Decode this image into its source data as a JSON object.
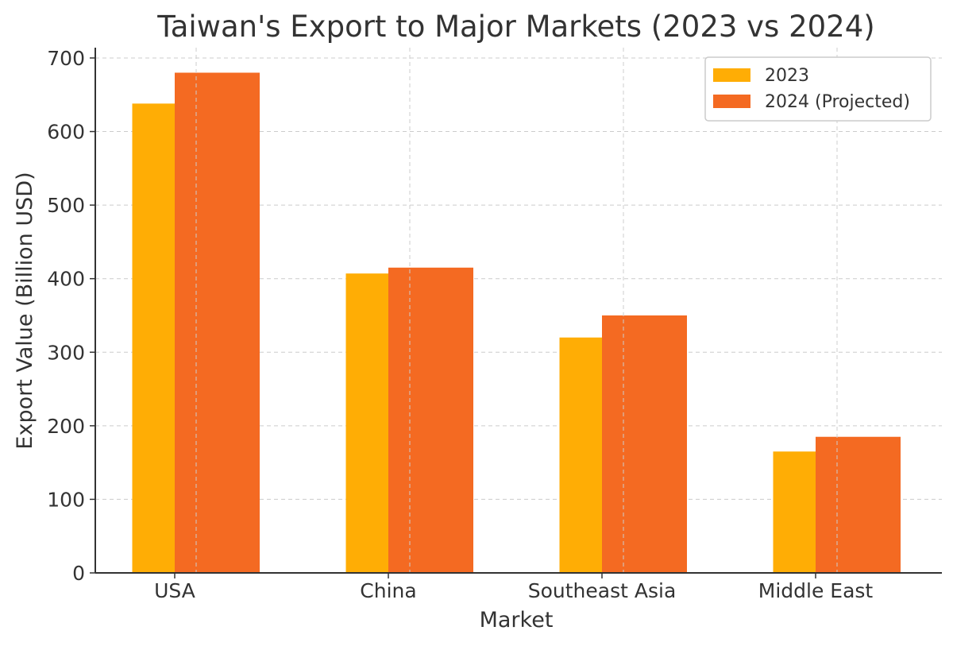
{
  "chart_data": {
    "type": "bar",
    "title": "Taiwan's Export to Major Markets (2023 vs 2024)",
    "xlabel": "Market",
    "ylabel": "Export Value (Billion USD)",
    "categories": [
      "USA",
      "China",
      "Southeast Asia",
      "Middle East"
    ],
    "series": [
      {
        "name": "2023",
        "values": [
          638,
          407,
          320,
          165
        ],
        "color": "#FFAD05"
      },
      {
        "name": "2024 (Projected)",
        "values": [
          680,
          415,
          350,
          185
        ],
        "color": "#F46A22"
      }
    ],
    "ylim": [
      0,
      714
    ],
    "yticks": [
      0,
      100,
      200,
      300,
      400,
      500,
      600,
      700
    ],
    "grid": true,
    "legend_position": "top-right"
  }
}
